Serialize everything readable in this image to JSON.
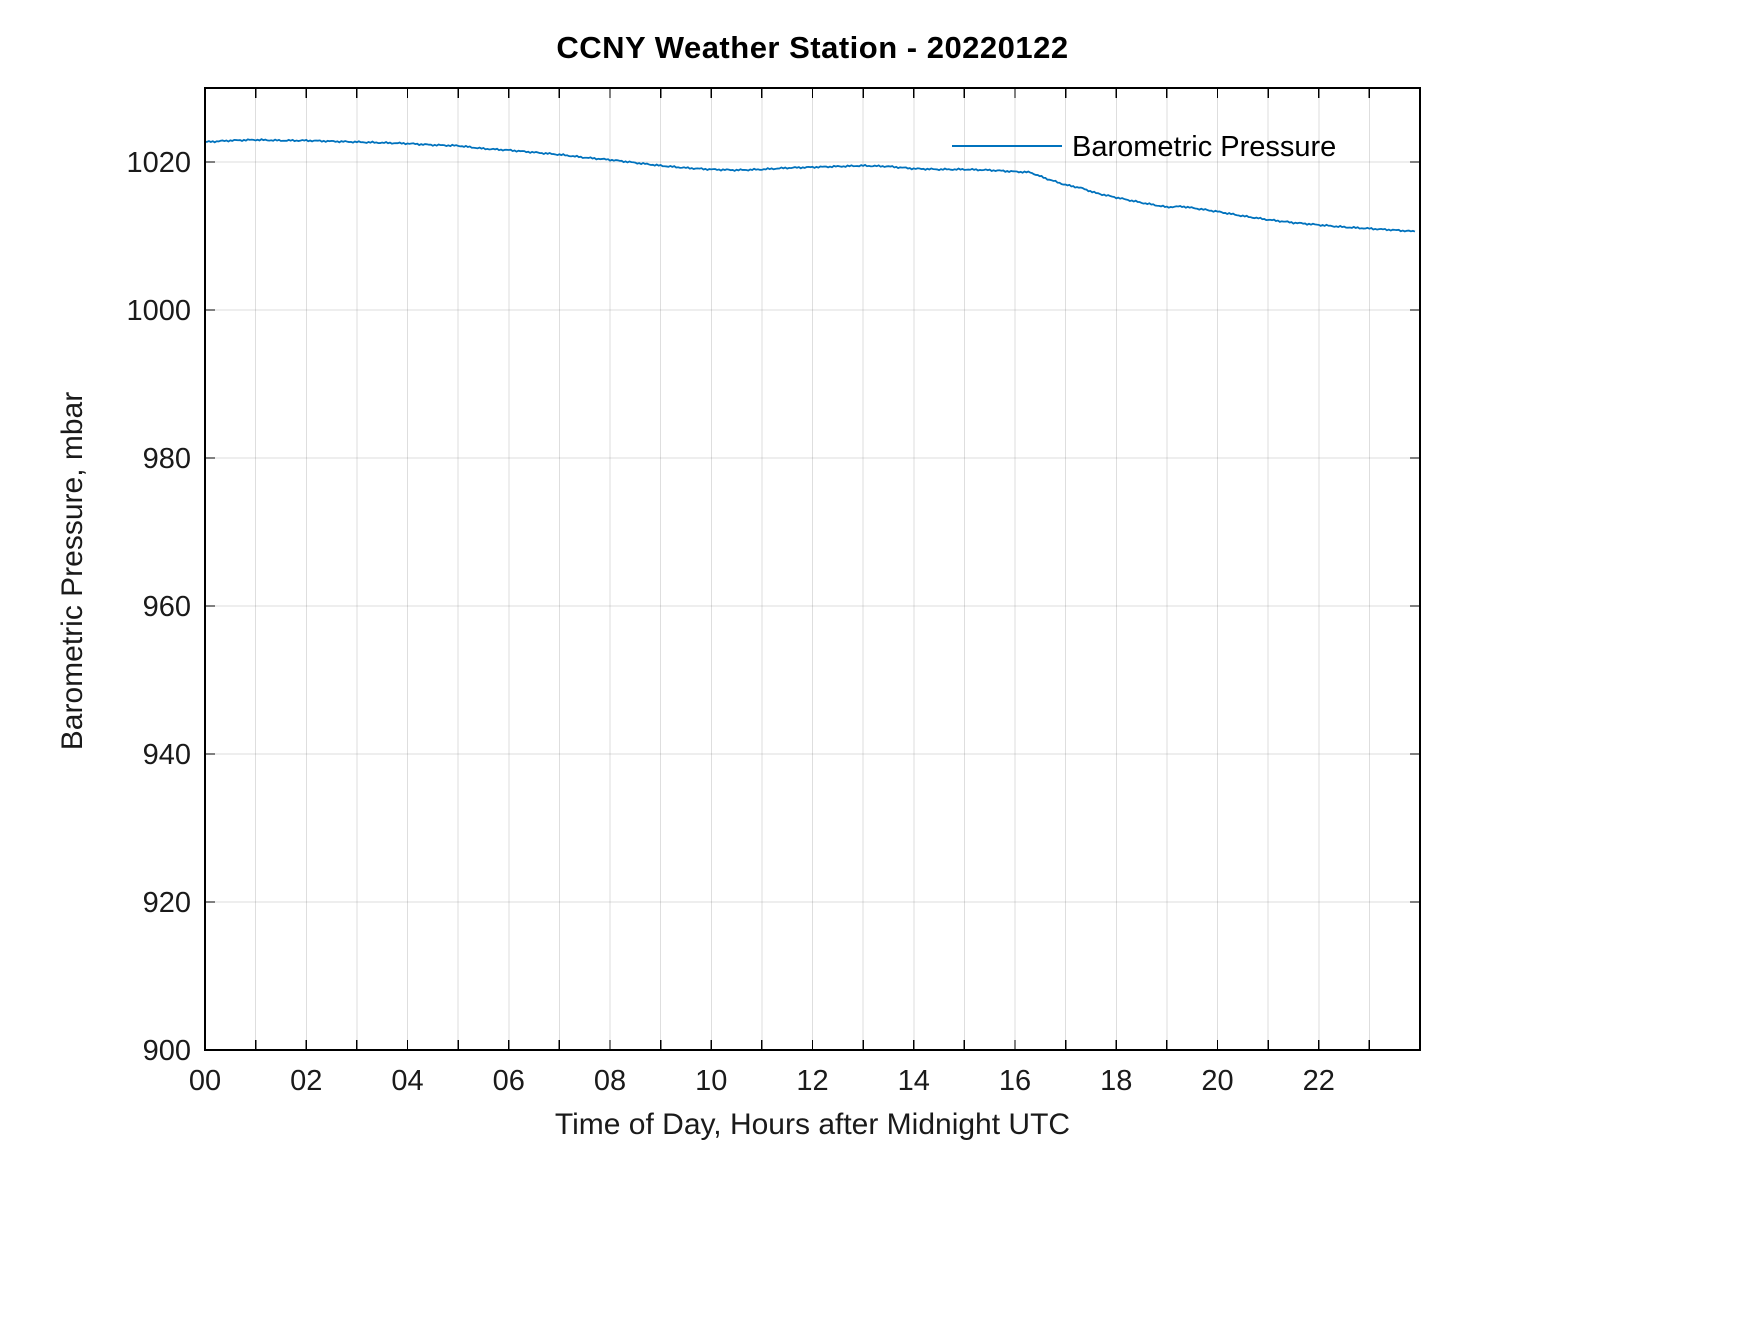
{
  "title": "CCNY Weather Station - 20220122",
  "chart_data": {
    "type": "line",
    "title": "CCNY Weather Station - 20220122",
    "xlabel": "Time of Day, Hours after Midnight UTC",
    "ylabel": "Barometric Pressure, mbar",
    "xlim": [
      0,
      24
    ],
    "ylim": [
      900,
      1030
    ],
    "xtick_values": [
      0,
      2,
      4,
      6,
      8,
      10,
      12,
      14,
      16,
      18,
      20,
      22
    ],
    "xtick_labels": [
      "00",
      "02",
      "04",
      "06",
      "08",
      "10",
      "12",
      "14",
      "16",
      "18",
      "20",
      "22"
    ],
    "x_minor_step": 1,
    "ytick_values": [
      900,
      920,
      940,
      960,
      980,
      1000,
      1020
    ],
    "ytick_labels": [
      "900",
      "920",
      "940",
      "960",
      "980",
      "1000",
      "1020"
    ],
    "grid": true,
    "legend": {
      "position": "top-right",
      "entries": [
        {
          "label": "Barometric Pressure",
          "color": "#0072BD"
        }
      ]
    },
    "series": [
      {
        "name": "Barometric Pressure",
        "color": "#0072BD",
        "x": [
          0,
          0.5,
          1,
          1.5,
          2,
          2.5,
          3,
          3.5,
          4,
          4.5,
          5,
          5.5,
          6,
          6.5,
          7,
          7.5,
          8,
          8.5,
          9,
          9.5,
          10,
          10.5,
          11,
          11.5,
          12,
          12.5,
          13,
          13.5,
          14,
          14.5,
          15,
          15.5,
          16,
          16.3,
          16.6,
          17,
          17.3,
          17.6,
          18,
          18.5,
          19,
          19.3,
          19.6,
          20,
          20.5,
          21,
          21.5,
          22,
          22.5,
          23,
          23.5,
          23.9
        ],
        "y": [
          1022.7,
          1022.9,
          1023.0,
          1022.9,
          1022.9,
          1022.8,
          1022.7,
          1022.6,
          1022.5,
          1022.3,
          1022.2,
          1021.8,
          1021.6,
          1021.3,
          1021.0,
          1020.6,
          1020.3,
          1019.9,
          1019.5,
          1019.2,
          1019.0,
          1018.9,
          1019.0,
          1019.2,
          1019.3,
          1019.4,
          1019.5,
          1019.4,
          1019.1,
          1019.0,
          1019.0,
          1018.9,
          1018.7,
          1018.6,
          1017.8,
          1016.9,
          1016.5,
          1015.8,
          1015.2,
          1014.5,
          1013.9,
          1014.0,
          1013.7,
          1013.3,
          1012.7,
          1012.2,
          1011.8,
          1011.5,
          1011.2,
          1011.0,
          1010.8,
          1010.6
        ]
      }
    ]
  },
  "colors": {
    "line": "#0072BD",
    "grid": "rgba(0,0,0,0.13)",
    "axis": "#000000",
    "tick_text": "#1a1a1a",
    "background": "#ffffff"
  }
}
